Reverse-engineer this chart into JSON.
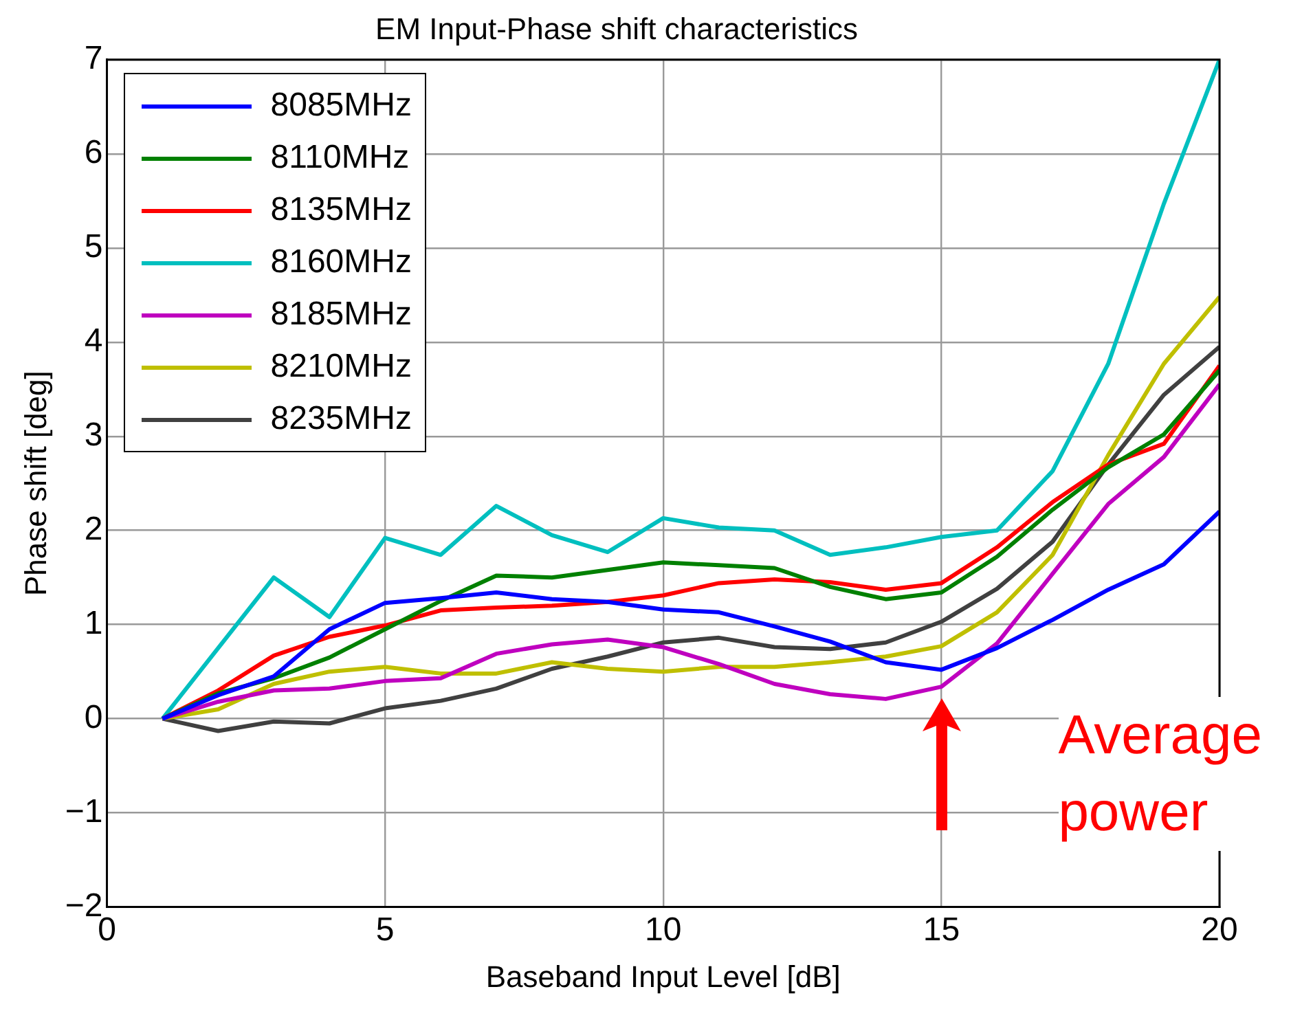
{
  "chart_data": {
    "type": "line",
    "title": "EM Input-Phase shift characteristics",
    "xlabel": "Baseband Input Level [dB]",
    "ylabel": "Phase shift [deg]",
    "x": [
      1,
      2,
      3,
      4,
      5,
      6,
      7,
      8,
      9,
      10,
      11,
      12,
      13,
      14,
      15,
      16,
      17,
      18,
      19,
      20
    ],
    "series": [
      {
        "name": "8085MHz",
        "color": "#0000ff",
        "values": [
          0,
          0.25,
          0.45,
          0.95,
          1.23,
          1.28,
          1.34,
          1.27,
          1.24,
          1.16,
          1.13,
          0.98,
          0.82,
          0.6,
          0.52,
          0.75,
          1.05,
          1.37,
          1.64,
          2.2
        ]
      },
      {
        "name": "8110MHz",
        "color": "#008000",
        "values": [
          0,
          0.27,
          0.43,
          0.65,
          0.95,
          1.25,
          1.52,
          1.5,
          1.58,
          1.66,
          1.63,
          1.6,
          1.4,
          1.27,
          1.34,
          1.72,
          2.22,
          2.67,
          3.02,
          3.7
        ]
      },
      {
        "name": "8135MHz",
        "color": "#ff0000",
        "values": [
          0,
          0.3,
          0.67,
          0.87,
          0.99,
          1.15,
          1.18,
          1.2,
          1.24,
          1.31,
          1.44,
          1.48,
          1.45,
          1.37,
          1.44,
          1.82,
          2.3,
          2.7,
          2.92,
          3.75
        ]
      },
      {
        "name": "8160MHz",
        "color": "#00bfbf",
        "values": [
          0,
          0.75,
          1.5,
          1.08,
          1.92,
          1.74,
          2.26,
          1.95,
          1.77,
          2.13,
          2.03,
          2,
          1.74,
          1.82,
          1.93,
          2,
          2.63,
          3.77,
          5.47,
          7
        ]
      },
      {
        "name": "8185MHz",
        "color": "#bf00bf",
        "values": [
          0,
          0.18,
          0.3,
          0.32,
          0.4,
          0.43,
          0.69,
          0.79,
          0.84,
          0.76,
          0.58,
          0.37,
          0.26,
          0.21,
          0.34,
          0.8,
          1.54,
          2.28,
          2.78,
          3.55
        ]
      },
      {
        "name": "8210MHz",
        "color": "#bfbf00",
        "values": [
          0,
          0.1,
          0.37,
          0.5,
          0.55,
          0.48,
          0.48,
          0.6,
          0.53,
          0.5,
          0.55,
          0.55,
          0.6,
          0.66,
          0.77,
          1.13,
          1.74,
          2.8,
          3.77,
          4.48
        ]
      },
      {
        "name": "8235MHz",
        "color": "#404040",
        "values": [
          0,
          -0.13,
          -0.03,
          -0.05,
          0.11,
          0.19,
          0.32,
          0.53,
          0.66,
          0.81,
          0.86,
          0.76,
          0.74,
          0.81,
          1.03,
          1.38,
          1.88,
          2.7,
          3.44,
          3.95
        ]
      }
    ],
    "xlim": [
      0,
      20
    ],
    "xticks": [
      0,
      5,
      10,
      15,
      20
    ],
    "ylim": [
      -2,
      7
    ],
    "yticks": [
      {
        "value": -2,
        "label": "−2"
      },
      {
        "value": -1,
        "label": "−1"
      },
      0,
      1,
      2,
      3,
      4,
      5,
      6,
      7
    ],
    "grid": true,
    "legend": "top left",
    "marker": "none",
    "line_style": "solid",
    "annotations": [
      {
        "text": "Average power",
        "x": 15,
        "y": 0.3
      }
    ]
  }
}
